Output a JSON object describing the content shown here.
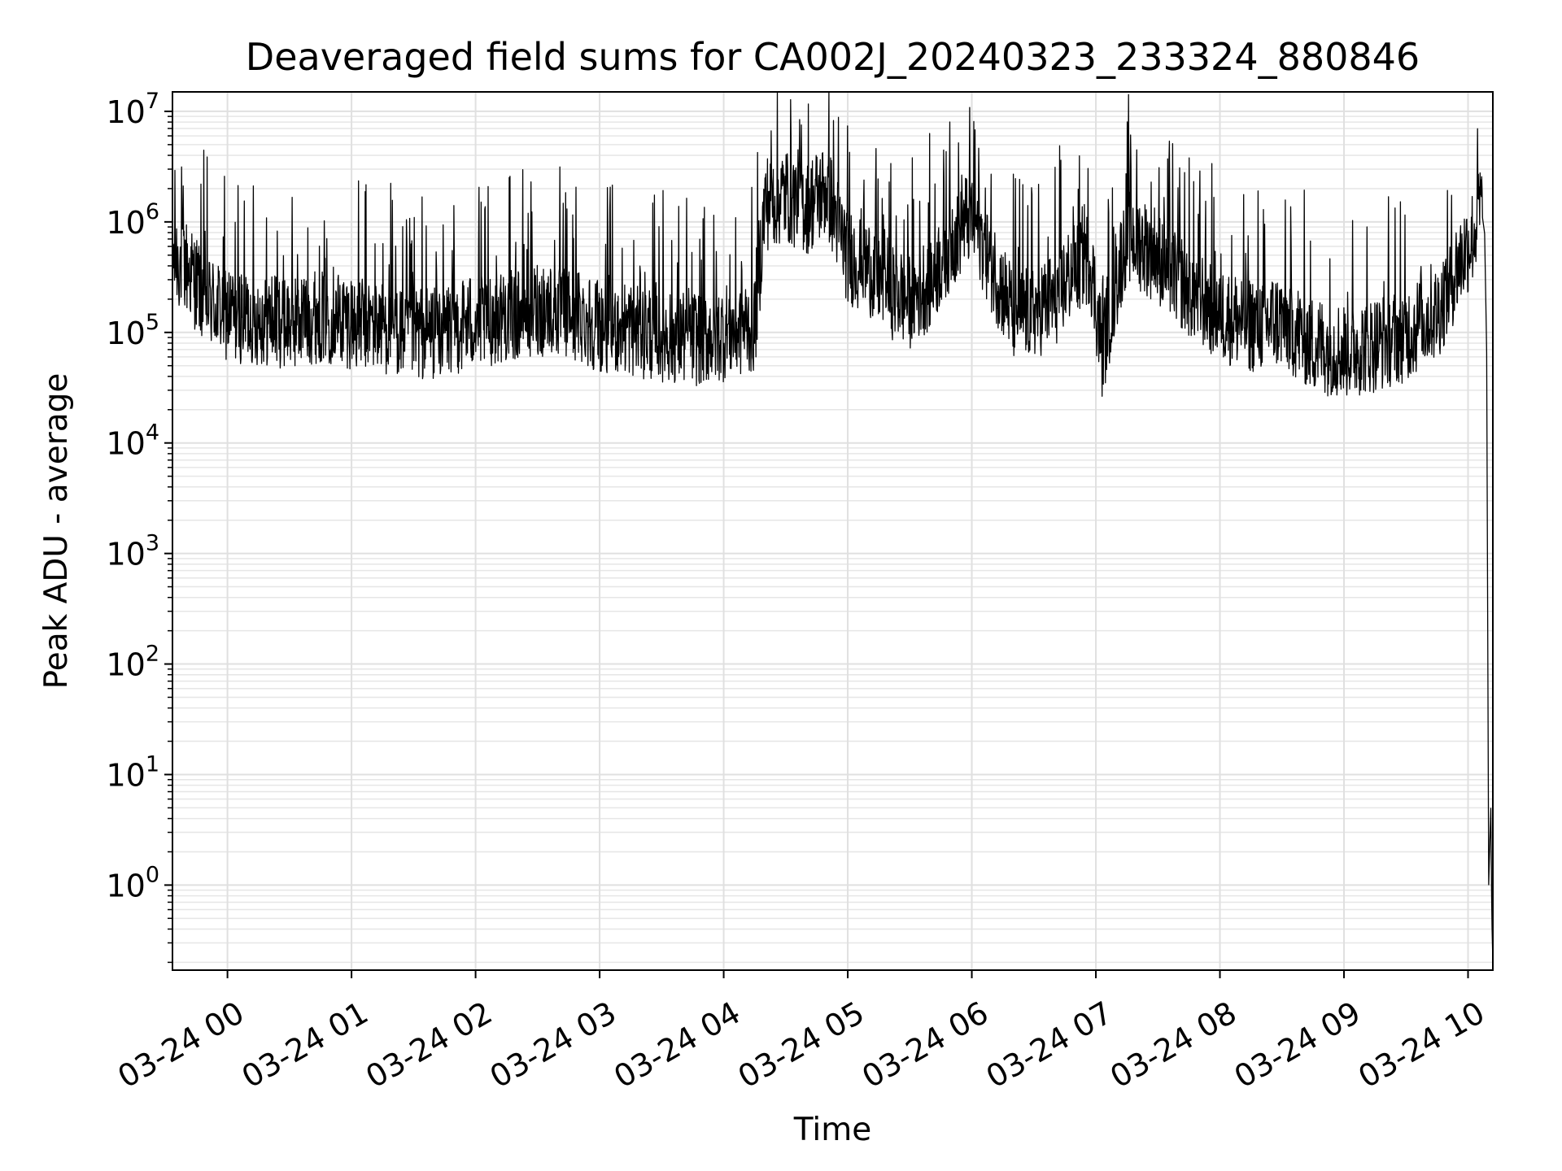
{
  "chart_data": {
    "type": "line",
    "title": "Deaveraged field sums for CA002J_20240323_233324_880846",
    "xlabel": "Time",
    "ylabel": "Peak ADU - average",
    "x_axis": {
      "type": "time",
      "range": [
        "2024-03-23T23:33:24",
        "2024-03-24T10:12:00"
      ],
      "ticks": [
        "2024-03-24T00:00:00",
        "2024-03-24T01:00:00",
        "2024-03-24T02:00:00",
        "2024-03-24T03:00:00",
        "2024-03-24T04:00:00",
        "2024-03-24T05:00:00",
        "2024-03-24T06:00:00",
        "2024-03-24T07:00:00",
        "2024-03-24T08:00:00",
        "2024-03-24T09:00:00",
        "2024-03-24T10:00:00"
      ],
      "tick_labels": [
        "03-24 00",
        "03-24 01",
        "03-24 02",
        "03-24 03",
        "03-24 04",
        "03-24 05",
        "03-24 06",
        "03-24 07",
        "03-24 08",
        "03-24 09",
        "03-24 10"
      ]
    },
    "y_axis": {
      "scale": "log",
      "ylim": [
        0.17,
        15000000
      ],
      "ticks": [
        1,
        10,
        100,
        1000,
        10000,
        100000,
        1000000,
        10000000
      ],
      "tick_labels": [
        {
          "base": "10",
          "exp": "0"
        },
        {
          "base": "10",
          "exp": "1"
        },
        {
          "base": "10",
          "exp": "2"
        },
        {
          "base": "10",
          "exp": "3"
        },
        {
          "base": "10",
          "exp": "4"
        },
        {
          "base": "10",
          "exp": "5"
        },
        {
          "base": "10",
          "exp": "6"
        },
        {
          "base": "10",
          "exp": "7"
        }
      ]
    },
    "grid": true,
    "line_color": "#000000",
    "series": [
      {
        "x": [
          "2024-03-23T23:33:24",
          "2024-03-23T23:40:00",
          "2024-03-23T23:50:00",
          "2024-03-24T00:00:00",
          "2024-03-24T00:15:00",
          "2024-03-24T00:30:00",
          "2024-03-24T00:45:00",
          "2024-03-24T01:00:00",
          "2024-03-24T01:15:00",
          "2024-03-24T01:30:00",
          "2024-03-24T01:45:00",
          "2024-03-24T02:00:00",
          "2024-03-24T02:15:00",
          "2024-03-24T02:30:00",
          "2024-03-24T02:45:00",
          "2024-03-24T03:00:00",
          "2024-03-24T03:15:00",
          "2024-03-24T03:30:00",
          "2024-03-24T03:45:00",
          "2024-03-24T04:00:00",
          "2024-03-24T04:15:00",
          "2024-03-24T04:20:00",
          "2024-03-24T04:30:00",
          "2024-03-24T04:40:00",
          "2024-03-24T04:50:00",
          "2024-03-24T05:00:00",
          "2024-03-24T05:10:00",
          "2024-03-24T05:20:00",
          "2024-03-24T05:30:00",
          "2024-03-24T05:40:00",
          "2024-03-24T05:50:00",
          "2024-03-24T06:00:00",
          "2024-03-24T06:10:00",
          "2024-03-24T06:20:00",
          "2024-03-24T06:30:00",
          "2024-03-24T06:40:00",
          "2024-03-24T06:50:00",
          "2024-03-24T06:57:00",
          "2024-03-24T07:03:00",
          "2024-03-24T07:15:00",
          "2024-03-24T07:30:00",
          "2024-03-24T07:45:00",
          "2024-03-24T08:00:00",
          "2024-03-24T08:15:00",
          "2024-03-24T08:30:00",
          "2024-03-24T08:45:00",
          "2024-03-24T09:00:00",
          "2024-03-24T09:15:00",
          "2024-03-24T09:30:00",
          "2024-03-24T09:45:00",
          "2024-03-24T09:55:00",
          "2024-03-24T10:03:00",
          "2024-03-24T10:06:00",
          "2024-03-24T10:08:00",
          "2024-03-24T10:09:00",
          "2024-03-24T10:10:00",
          "2024-03-24T10:11:00",
          "2024-03-24T10:11:30",
          "2024-03-24T10:12:00"
        ],
        "y": [
          500000,
          400000,
          200000,
          150000,
          140000,
          130000,
          150000,
          130000,
          120000,
          100000,
          110000,
          130000,
          150000,
          170000,
          160000,
          120000,
          110000,
          100000,
          90000,
          100000,
          120000,
          1500000,
          1800000,
          1400000,
          2000000,
          500000,
          400000,
          250000,
          200000,
          300000,
          700000,
          1200000,
          400000,
          150000,
          160000,
          200000,
          400000,
          500000,
          70000,
          800000,
          500000,
          250000,
          150000,
          120000,
          130000,
          80000,
          70000,
          80000,
          100000,
          150000,
          400000,
          800000,
          1500000,
          800000,
          70000,
          1,
          5,
          0.5,
          0.2
        ]
      }
    ]
  }
}
